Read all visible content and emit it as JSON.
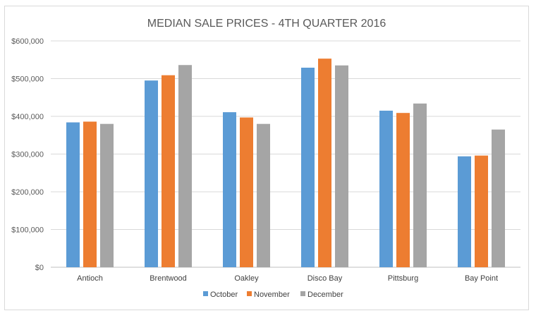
{
  "chart_data": {
    "type": "bar",
    "title": "MEDIAN SALE PRICES - 4TH QUARTER 2016",
    "xlabel": "",
    "ylabel": "",
    "categories": [
      "Antioch",
      "Brentwood",
      "Oakley",
      "Disco Bay",
      "Pittsburg",
      "Bay Point"
    ],
    "series": [
      {
        "name": "October",
        "color": "#5b9bd5",
        "values": [
          384000,
          495000,
          411000,
          529000,
          415000,
          294000
        ]
      },
      {
        "name": "November",
        "color": "#ed7d31",
        "values": [
          386000,
          509000,
          397000,
          553000,
          409000,
          296000
        ]
      },
      {
        "name": "December",
        "color": "#a5a5a5",
        "values": [
          380000,
          536000,
          380000,
          535000,
          434000,
          365000
        ]
      }
    ],
    "ylim": [
      0,
      600000
    ],
    "yticks": [
      0,
      100000,
      200000,
      300000,
      400000,
      500000,
      600000
    ],
    "ytick_labels": [
      "$0",
      "$100,000",
      "$200,000",
      "$300,000",
      "$400,000",
      "$500,000",
      "$600,000"
    ],
    "grid": true,
    "legend_position": "bottom"
  }
}
